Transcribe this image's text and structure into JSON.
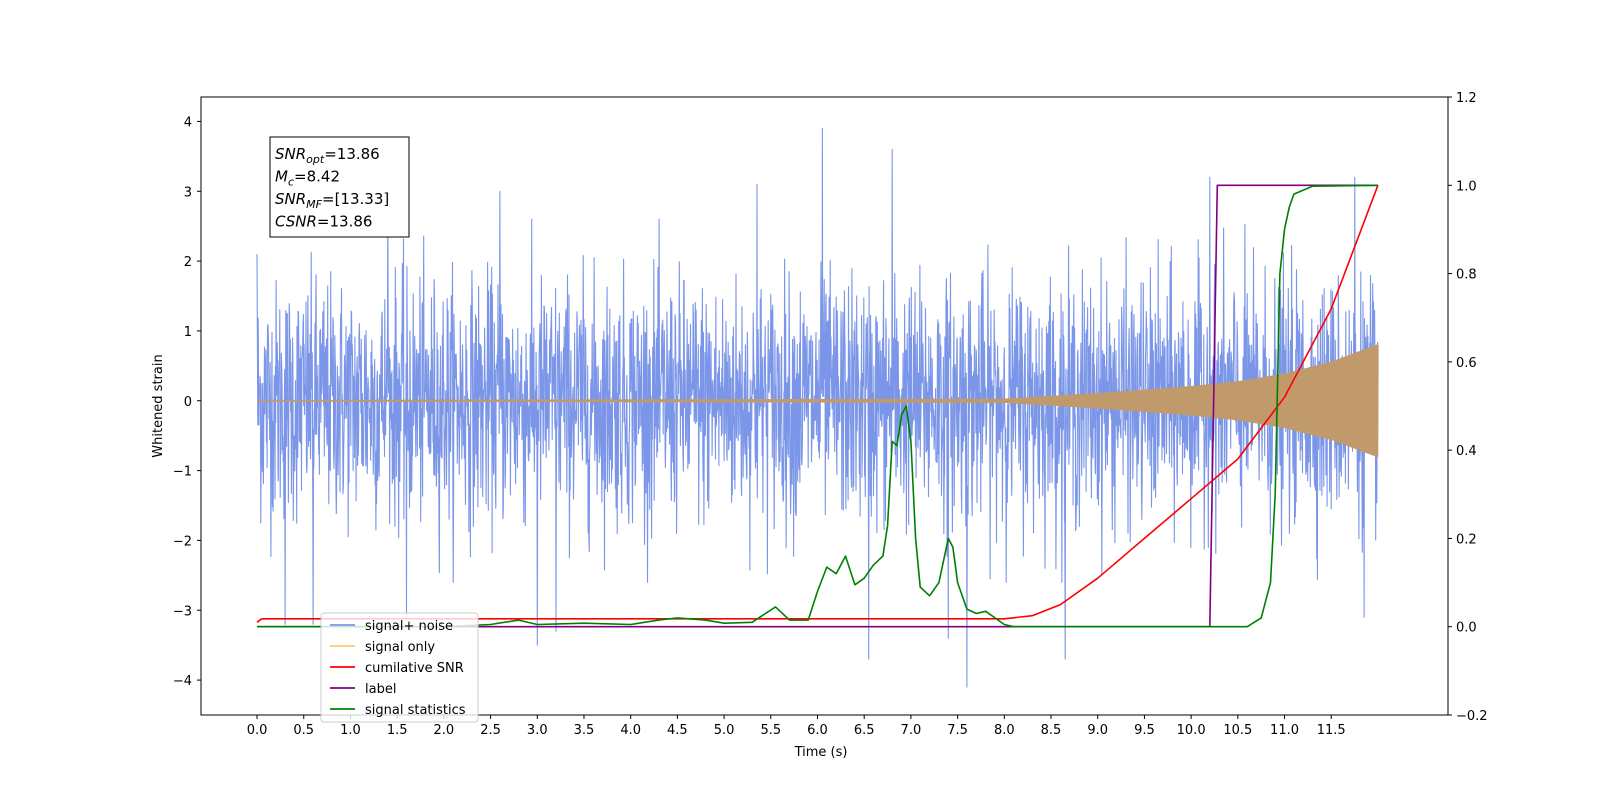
{
  "chart_data": {
    "type": "line",
    "xlabel": "Time (s)",
    "ylabel_left": "Whitened strain",
    "ylabel_right": "",
    "xlim": [
      -0.6,
      12.75
    ],
    "ylim_left": [
      -4.5,
      4.35
    ],
    "ylim_right": [
      -0.2,
      1.2
    ],
    "x_ticks": [
      0.0,
      0.5,
      1.0,
      1.5,
      2.0,
      2.5,
      3.0,
      3.5,
      4.0,
      4.5,
      5.0,
      5.5,
      6.0,
      6.5,
      7.0,
      7.5,
      8.0,
      8.5,
      9.0,
      9.5,
      10.0,
      10.5,
      11.0,
      11.5
    ],
    "x_tick_labels": [
      "0.0",
      "0.5",
      "1.0",
      "1.5",
      "2.0",
      "2.5",
      "3.0",
      "3.5",
      "4.0",
      "4.5",
      "5.0",
      "5.5",
      "6.0",
      "6.5",
      "7.0",
      "7.5",
      "8.0",
      "8.5",
      "9.0",
      "9.5",
      "10.0",
      "10.5",
      "11.0",
      "11.5"
    ],
    "y_left_ticks": [
      -4,
      -3,
      -2,
      -1,
      0,
      1,
      2,
      3,
      4
    ],
    "y_left_tick_labels": [
      "−4",
      "−3",
      "−2",
      "−1",
      "0",
      "1",
      "2",
      "3",
      "4"
    ],
    "y_right_ticks": [
      -0.2,
      0.0,
      0.2,
      0.4,
      0.6,
      0.8,
      1.0,
      1.2
    ],
    "y_right_tick_labels": [
      "−0.2",
      "0.0",
      "0.2",
      "0.4",
      "0.6",
      "0.8",
      "1.0",
      "1.2"
    ],
    "grid": false,
    "legend_position": "lower-left",
    "annotation": {
      "lines": [
        {
          "label": "SNR",
          "sub": "opt",
          "value": "=13.86"
        },
        {
          "label": "M",
          "sub": "c",
          "value": "=8.42"
        },
        {
          "label": "SNR",
          "sub": "MF",
          "value": "=[13.33]"
        },
        {
          "label": "CSNR",
          "sub": "",
          "value": "=13.86"
        }
      ]
    },
    "series": [
      {
        "name": "signal+ noise",
        "axis": "left",
        "color": "#7b96e8",
        "x_range": [
          0.0,
          12.0
        ],
        "noise_std": 0.85,
        "x_peaks": [
          [
            0.0,
            2.1
          ],
          [
            0.3,
            -3.2
          ],
          [
            0.6,
            -3.2
          ],
          [
            1.4,
            2.9
          ],
          [
            1.6,
            -3.1
          ],
          [
            2.6,
            3.0
          ],
          [
            3.0,
            -3.5
          ],
          [
            3.2,
            -3.3
          ],
          [
            5.35,
            3.1
          ],
          [
            6.05,
            3.9
          ],
          [
            6.55,
            -3.7
          ],
          [
            6.8,
            3.6
          ],
          [
            7.4,
            -3.4
          ],
          [
            7.6,
            -4.1
          ],
          [
            8.65,
            -3.7
          ],
          [
            10.2,
            3.2
          ],
          [
            11.75,
            3.2
          ],
          [
            11.85,
            -3.1
          ]
        ]
      },
      {
        "name": "signal only",
        "axis": "left",
        "color": "#c19a6b",
        "x_range": [
          0.0,
          12.0
        ],
        "envelope": [
          [
            0.0,
            0.0
          ],
          [
            8.0,
            0.02
          ],
          [
            9.0,
            0.1
          ],
          [
            10.0,
            0.2
          ],
          [
            10.5,
            0.27
          ],
          [
            11.0,
            0.38
          ],
          [
            11.5,
            0.55
          ],
          [
            12.0,
            0.8
          ]
        ]
      },
      {
        "name": "cumilative SNR",
        "axis": "right",
        "color": "#ff0000",
        "x": [
          0.0,
          0.05,
          8.0,
          8.3,
          8.6,
          9.0,
          9.5,
          10.0,
          10.5,
          11.0,
          11.5,
          12.0
        ],
        "y": [
          0.01,
          0.018,
          0.018,
          0.025,
          0.05,
          0.11,
          0.2,
          0.29,
          0.38,
          0.52,
          0.72,
          1.0
        ]
      },
      {
        "name": "label",
        "axis": "right",
        "color": "#800080",
        "x": [
          0.0,
          10.2,
          10.28,
          12.0
        ],
        "y": [
          0.0,
          0.0,
          1.0,
          1.0
        ]
      },
      {
        "name": "signal statistics",
        "axis": "right",
        "color": "#008000",
        "x": [
          0.0,
          2.0,
          2.5,
          2.8,
          3.0,
          3.5,
          4.0,
          4.3,
          4.5,
          4.8,
          5.0,
          5.3,
          5.55,
          5.7,
          5.9,
          6.0,
          6.1,
          6.2,
          6.3,
          6.4,
          6.5,
          6.6,
          6.7,
          6.75,
          6.8,
          6.85,
          6.9,
          6.95,
          7.0,
          7.05,
          7.1,
          7.2,
          7.3,
          7.4,
          7.45,
          7.5,
          7.6,
          7.7,
          7.8,
          7.9,
          8.0,
          8.1,
          10.6,
          10.75,
          10.85,
          10.9,
          10.95,
          11.0,
          11.05,
          11.1,
          11.3,
          12.0
        ],
        "y": [
          0.0,
          0.0,
          0.005,
          0.015,
          0.005,
          0.008,
          0.005,
          0.015,
          0.02,
          0.015,
          0.008,
          0.01,
          0.045,
          0.015,
          0.015,
          0.08,
          0.135,
          0.12,
          0.16,
          0.095,
          0.11,
          0.14,
          0.16,
          0.23,
          0.42,
          0.41,
          0.48,
          0.5,
          0.42,
          0.2,
          0.09,
          0.07,
          0.1,
          0.2,
          0.18,
          0.1,
          0.04,
          0.03,
          0.035,
          0.02,
          0.005,
          0.0,
          0.0,
          0.02,
          0.1,
          0.3,
          0.8,
          0.9,
          0.95,
          0.98,
          0.998,
          1.0
        ]
      }
    ],
    "legend": [
      {
        "label": "signal+ noise",
        "color": "#7b96e8"
      },
      {
        "label": "signal only",
        "color": "#ffcc66"
      },
      {
        "label": "cumilative SNR",
        "color": "#ff0000"
      },
      {
        "label": "label",
        "color": "#800080"
      },
      {
        "label": "signal statistics",
        "color": "#008000"
      }
    ]
  }
}
